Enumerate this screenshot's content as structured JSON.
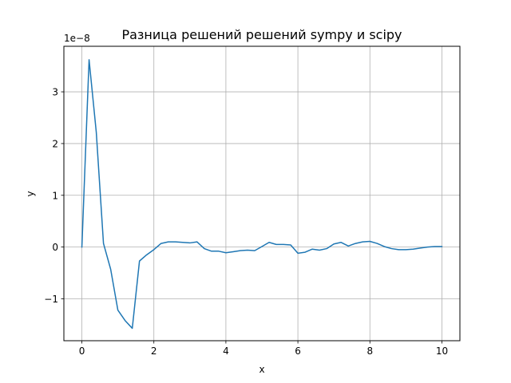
{
  "chart_data": {
    "type": "line",
    "title": "Разница решений решений sympy и scipy",
    "xlabel": "x",
    "ylabel": "y",
    "y_scale_label": "1e−8",
    "xlim": [
      -0.5,
      10.5
    ],
    "ylim": [
      -1.81,
      3.88
    ],
    "x_ticks": [
      0,
      2,
      4,
      6,
      8,
      10
    ],
    "y_ticks": [
      -1,
      0,
      1,
      2,
      3
    ],
    "x_tick_labels": [
      "0",
      "2",
      "4",
      "6",
      "8",
      "10"
    ],
    "y_tick_labels": [
      "−1",
      "0",
      "1",
      "2",
      "3"
    ],
    "grid": true,
    "colors": {
      "line": "#1f77b4",
      "grid": "#b0b0b0",
      "axes": "#000000"
    },
    "series": [
      {
        "x": [
          0.0,
          0.2,
          0.4,
          0.6,
          0.8,
          1.0,
          1.2,
          1.4,
          1.6,
          1.8,
          2.0,
          2.2,
          2.4,
          2.6,
          2.8,
          3.0,
          3.2,
          3.4,
          3.6,
          3.8,
          4.0,
          4.2,
          4.4,
          4.6,
          4.8,
          5.0,
          5.2,
          5.4,
          5.6,
          5.8,
          6.0,
          6.2,
          6.4,
          6.6,
          6.8,
          7.0,
          7.2,
          7.4,
          7.6,
          7.8,
          8.0,
          8.2,
          8.4,
          8.6,
          8.8,
          9.0,
          9.2,
          9.4,
          9.6,
          9.8,
          10.0
        ],
        "values": [
          0.0,
          3.62,
          2.22,
          0.07,
          -0.43,
          -1.22,
          -1.42,
          -1.57,
          -0.27,
          -0.15,
          -0.05,
          0.07,
          0.1,
          0.1,
          0.09,
          0.08,
          0.1,
          -0.03,
          -0.08,
          -0.08,
          -0.11,
          -0.09,
          -0.07,
          -0.06,
          -0.07,
          0.01,
          0.09,
          0.05,
          0.05,
          0.04,
          -0.12,
          -0.1,
          -0.04,
          -0.06,
          -0.03,
          0.06,
          0.09,
          0.02,
          0.07,
          0.1,
          0.11,
          0.07,
          0.01,
          -0.03,
          -0.05,
          -0.05,
          -0.04,
          -0.02,
          0.0,
          0.01,
          0.01
        ]
      }
    ]
  }
}
